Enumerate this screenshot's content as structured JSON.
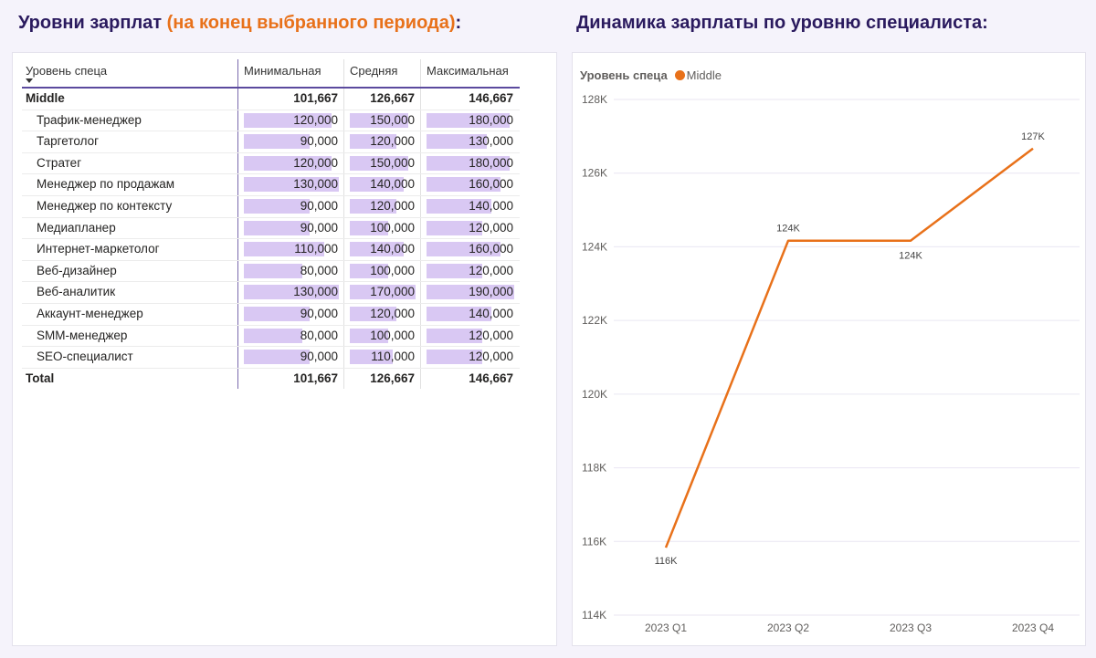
{
  "left_title": {
    "main": "Уровни зарплат ",
    "accent": "(на конец выбранного периода)",
    "suffix": ":"
  },
  "right_title": "Динамика зарплаты по уровню специалиста:",
  "matrix": {
    "columns": [
      "Уровень спеца",
      "Минимальная",
      "Средняя",
      "Максимальная"
    ],
    "group": {
      "label": "Middle",
      "min": "101,667",
      "avg": "126,667",
      "max": "146,667"
    },
    "rows": [
      {
        "label": "Трафик-менеджер",
        "min": "120,000",
        "avg": "150,000",
        "max": "180,000",
        "min_v": 120000,
        "avg_v": 150000,
        "max_v": 180000
      },
      {
        "label": "Таргетолог",
        "min": "90,000",
        "avg": "120,000",
        "max": "130,000",
        "min_v": 90000,
        "avg_v": 120000,
        "max_v": 130000
      },
      {
        "label": "Стратег",
        "min": "120,000",
        "avg": "150,000",
        "max": "180,000",
        "min_v": 120000,
        "avg_v": 150000,
        "max_v": 180000
      },
      {
        "label": "Менеджер по продажам",
        "min": "130,000",
        "avg": "140,000",
        "max": "160,000",
        "min_v": 130000,
        "avg_v": 140000,
        "max_v": 160000
      },
      {
        "label": "Менеджер по контексту",
        "min": "90,000",
        "avg": "120,000",
        "max": "140,000",
        "min_v": 90000,
        "avg_v": 120000,
        "max_v": 140000
      },
      {
        "label": "Медиапланер",
        "min": "90,000",
        "avg": "100,000",
        "max": "120,000",
        "min_v": 90000,
        "avg_v": 100000,
        "max_v": 120000
      },
      {
        "label": "Интернет-маркетолог",
        "min": "110,000",
        "avg": "140,000",
        "max": "160,000",
        "min_v": 110000,
        "avg_v": 140000,
        "max_v": 160000
      },
      {
        "label": "Веб-дизайнер",
        "min": "80,000",
        "avg": "100,000",
        "max": "120,000",
        "min_v": 80000,
        "avg_v": 100000,
        "max_v": 120000
      },
      {
        "label": "Веб-аналитик",
        "min": "130,000",
        "avg": "170,000",
        "max": "190,000",
        "min_v": 130000,
        "avg_v": 170000,
        "max_v": 190000
      },
      {
        "label": "Аккаунт-менеджер",
        "min": "90,000",
        "avg": "120,000",
        "max": "140,000",
        "min_v": 90000,
        "avg_v": 120000,
        "max_v": 140000
      },
      {
        "label": "SMM-менеджер",
        "min": "80,000",
        "avg": "100,000",
        "max": "120,000",
        "min_v": 80000,
        "avg_v": 100000,
        "max_v": 120000
      },
      {
        "label": "SEO-специалист",
        "min": "90,000",
        "avg": "110,000",
        "max": "120,000",
        "min_v": 90000,
        "avg_v": 110000,
        "max_v": 120000
      }
    ],
    "total": {
      "label": "Total",
      "min": "101,667",
      "avg": "126,667",
      "max": "146,667"
    },
    "bar_color": "#d9c8f3"
  },
  "legend": {
    "title": "Уровень спеца",
    "series": "Middle"
  },
  "chart_data": {
    "type": "line",
    "x": [
      "2023 Q1",
      "2023 Q2",
      "2023 Q3",
      "2023 Q4"
    ],
    "series": [
      {
        "name": "Middle",
        "values": [
          115833,
          124167,
          124167,
          126667
        ],
        "labels": [
          "116K",
          "124K",
          "124K",
          "127K"
        ],
        "color": "#e8711a"
      }
    ],
    "yticks": [
      "114K",
      "116K",
      "118K",
      "120K",
      "122K",
      "124K",
      "126K",
      "128K"
    ],
    "ylim": [
      114000,
      128000
    ],
    "grid": true
  }
}
